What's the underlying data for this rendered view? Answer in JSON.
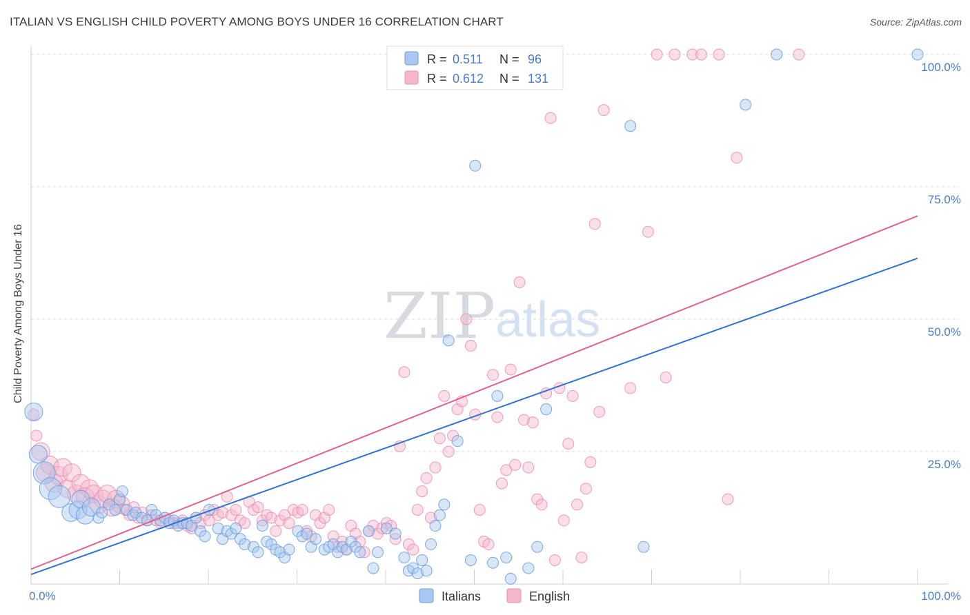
{
  "header": {
    "title": "ITALIAN VS ENGLISH CHILD POVERTY AMONG BOYS UNDER 16 CORRELATION CHART",
    "source": "Source: ZipAtlas.com"
  },
  "watermark": {
    "part1": "ZIP",
    "part2": "atlas"
  },
  "colors": {
    "italians_fill": "#a9c7f0",
    "italians_stroke": "#6a9ee0",
    "italians_line": "#2f72d2",
    "english_fill": "#f5b8cb",
    "english_stroke": "#ec8fae",
    "english_line": "#e0608c",
    "tick_text": "#4a7cc9",
    "grid": "#d9d9d9"
  },
  "legend_top": {
    "rows": [
      {
        "r_label": "R = ",
        "r_value": "0.511",
        "n_label": "N = ",
        "n_value": "96"
      },
      {
        "r_label": "R = ",
        "r_value": "0.612",
        "n_label": "N = ",
        "n_value": "131"
      }
    ]
  },
  "chart_data": {
    "type": "scatter",
    "title": "ITALIAN VS ENGLISH CHILD POVERTY AMONG BOYS UNDER 16 CORRELATION CHART",
    "xlabel": "",
    "ylabel": "Child Poverty Among Boys Under 16",
    "xlim": [
      0,
      100
    ],
    "ylim": [
      0,
      100
    ],
    "x_tick_labels": [
      "0.0%",
      "100.0%"
    ],
    "y_tick_labels": [
      "25.0%",
      "50.0%",
      "75.0%",
      "100.0%"
    ],
    "y_ticks": [
      25,
      50,
      75,
      100
    ],
    "grid": true,
    "legend_position": "bottom",
    "series": [
      {
        "name": "Italians",
        "r": 0.511,
        "n": 96,
        "trend": [
          [
            0,
            1.8
          ],
          [
            100,
            61.5
          ]
        ],
        "points": [
          [
            0.3,
            32.5,
            2
          ],
          [
            0.8,
            24.5,
            2
          ],
          [
            1.5,
            21,
            3
          ],
          [
            2.2,
            18,
            3
          ],
          [
            3.2,
            16.5,
            3
          ],
          [
            4.5,
            13.5,
            2
          ],
          [
            5.3,
            14,
            2
          ],
          [
            5.6,
            16,
            2
          ],
          [
            6.1,
            13,
            2
          ],
          [
            6.8,
            14.5,
            2
          ],
          [
            7.6,
            12.5,
            1
          ],
          [
            8,
            13.5,
            1
          ],
          [
            8.8,
            15,
            1
          ],
          [
            9.5,
            14,
            1
          ],
          [
            10,
            16,
            1
          ],
          [
            10.3,
            17.5,
            1
          ],
          [
            10.8,
            14,
            1
          ],
          [
            11.5,
            13,
            1
          ],
          [
            11.8,
            13.5,
            1
          ],
          [
            12.5,
            12.5,
            1
          ],
          [
            13.1,
            12,
            1
          ],
          [
            13.6,
            14,
            1
          ],
          [
            14.1,
            13,
            1
          ],
          [
            14.6,
            12,
            1
          ],
          [
            15.1,
            12.5,
            1
          ],
          [
            15.6,
            11.5,
            1
          ],
          [
            16.1,
            12,
            1
          ],
          [
            16.6,
            11,
            1
          ],
          [
            17.1,
            11.5,
            1
          ],
          [
            17.6,
            11.5,
            1
          ],
          [
            18.1,
            11,
            1
          ],
          [
            18.6,
            12.5,
            1
          ],
          [
            19.1,
            10,
            1
          ],
          [
            19.6,
            9,
            1
          ],
          [
            20.1,
            14,
            1
          ],
          [
            21.1,
            10.5,
            1
          ],
          [
            21.6,
            8.5,
            1
          ],
          [
            22.1,
            10,
            1
          ],
          [
            22.6,
            9.5,
            1
          ],
          [
            23.1,
            10.5,
            1
          ],
          [
            23.6,
            8.5,
            1
          ],
          [
            24.1,
            7.5,
            1
          ],
          [
            25.1,
            7,
            1
          ],
          [
            25.6,
            6,
            1
          ],
          [
            26.1,
            11,
            1
          ],
          [
            26.6,
            8,
            1
          ],
          [
            27.1,
            7.5,
            1
          ],
          [
            27.6,
            6.5,
            1
          ],
          [
            28.1,
            6,
            1
          ],
          [
            28.6,
            5,
            1
          ],
          [
            29.1,
            6.5,
            1
          ],
          [
            30.1,
            10,
            1
          ],
          [
            30.6,
            9,
            1
          ],
          [
            31.1,
            9.5,
            1
          ],
          [
            31.6,
            7,
            1
          ],
          [
            32.1,
            8.5,
            1
          ],
          [
            33.1,
            6.5,
            1
          ],
          [
            33.6,
            7,
            1
          ],
          [
            34.1,
            7.5,
            1
          ],
          [
            34.6,
            6,
            1
          ],
          [
            35.1,
            7,
            1
          ],
          [
            35.6,
            6.5,
            1
          ],
          [
            36.1,
            8,
            1
          ],
          [
            36.6,
            7,
            1
          ],
          [
            37.1,
            6,
            1
          ],
          [
            38.1,
            10,
            1
          ],
          [
            38.6,
            3,
            1
          ],
          [
            39.1,
            6,
            1
          ],
          [
            40.1,
            10.5,
            1
          ],
          [
            41.1,
            9.5,
            1
          ],
          [
            42.1,
            5,
            1
          ],
          [
            42.6,
            2.5,
            1
          ],
          [
            43.1,
            3,
            1
          ],
          [
            43.6,
            2,
            1
          ],
          [
            44.1,
            4.5,
            1
          ],
          [
            44.6,
            2.5,
            1
          ],
          [
            45.1,
            7.5,
            1
          ],
          [
            45.6,
            11,
            1
          ],
          [
            46.1,
            13,
            1
          ],
          [
            46.6,
            15,
            1
          ],
          [
            47.1,
            46,
            1
          ],
          [
            48.1,
            27,
            1
          ],
          [
            49.6,
            4.5,
            1
          ],
          [
            52.1,
            4,
            1
          ],
          [
            52.6,
            35.5,
            1
          ],
          [
            53.6,
            5,
            1
          ],
          [
            54.1,
            1,
            1
          ],
          [
            56.1,
            3,
            1
          ],
          [
            57.1,
            7,
            1
          ],
          [
            58.1,
            33,
            1
          ],
          [
            50.1,
            79,
            1
          ],
          [
            67.6,
            86.5,
            1
          ],
          [
            69.1,
            7,
            1
          ],
          [
            80.6,
            90.5,
            1
          ],
          [
            84.1,
            100,
            1
          ],
          [
            100,
            100,
            1
          ]
        ]
      },
      {
        "name": "English",
        "r": 0.612,
        "n": 131,
        "trend": [
          [
            0,
            2.8
          ],
          [
            100,
            69.5
          ]
        ],
        "points": [
          [
            0.3,
            32,
            1
          ],
          [
            0.6,
            28,
            1
          ],
          [
            1.1,
            25,
            2
          ],
          [
            1.6,
            21,
            2
          ],
          [
            2.1,
            22.5,
            2
          ],
          [
            2.6,
            19,
            2
          ],
          [
            3.1,
            20.5,
            2
          ],
          [
            3.6,
            22,
            2
          ],
          [
            4.1,
            18,
            2
          ],
          [
            4.6,
            21,
            2
          ],
          [
            5.1,
            17,
            2
          ],
          [
            5.6,
            19,
            2
          ],
          [
            6.1,
            16.5,
            2
          ],
          [
            6.6,
            18,
            2
          ],
          [
            7.1,
            17,
            2
          ],
          [
            7.6,
            15,
            2
          ],
          [
            8.1,
            16,
            2
          ],
          [
            8.6,
            17,
            2
          ],
          [
            9.1,
            14.5,
            2
          ],
          [
            9.6,
            16,
            2
          ],
          [
            10.1,
            15,
            2
          ],
          [
            10.6,
            14,
            1
          ],
          [
            11.1,
            13,
            1
          ],
          [
            11.6,
            14.5,
            1
          ],
          [
            12.1,
            12.5,
            1
          ],
          [
            12.6,
            13.5,
            1
          ],
          [
            13.1,
            12,
            1
          ],
          [
            13.6,
            13,
            1
          ],
          [
            14.1,
            12,
            1
          ],
          [
            14.6,
            11.5,
            1
          ],
          [
            15.1,
            12.5,
            1
          ],
          [
            15.6,
            12,
            1
          ],
          [
            16.1,
            11.5,
            1
          ],
          [
            16.6,
            11.5,
            1
          ],
          [
            17.1,
            12,
            1
          ],
          [
            17.6,
            11,
            1
          ],
          [
            18.1,
            10.5,
            1
          ],
          [
            18.6,
            12.5,
            1
          ],
          [
            19.1,
            11.5,
            1
          ],
          [
            19.6,
            13,
            1
          ],
          [
            20.1,
            12,
            1
          ],
          [
            20.6,
            14,
            1
          ],
          [
            21.1,
            13,
            1
          ],
          [
            21.6,
            13.5,
            1
          ],
          [
            22.1,
            16.5,
            1
          ],
          [
            22.6,
            13,
            1
          ],
          [
            23.1,
            14,
            1
          ],
          [
            23.6,
            12,
            1
          ],
          [
            24.1,
            11.5,
            1
          ],
          [
            24.6,
            15.5,
            1
          ],
          [
            25.1,
            14,
            1
          ],
          [
            25.6,
            14.5,
            1
          ],
          [
            26.1,
            12,
            1
          ],
          [
            26.6,
            13,
            1
          ],
          [
            27.1,
            12.5,
            1
          ],
          [
            27.6,
            10,
            1
          ],
          [
            28.1,
            12,
            1
          ],
          [
            28.6,
            13,
            1
          ],
          [
            29.1,
            11.5,
            1
          ],
          [
            29.6,
            14,
            1
          ],
          [
            30.1,
            13.5,
            1
          ],
          [
            30.6,
            14,
            1
          ],
          [
            31.1,
            10,
            1
          ],
          [
            31.6,
            9,
            1
          ],
          [
            32.1,
            13,
            1
          ],
          [
            32.6,
            11.5,
            1
          ],
          [
            33.1,
            12.5,
            1
          ],
          [
            33.6,
            14,
            1
          ],
          [
            34.1,
            9,
            1
          ],
          [
            34.6,
            7,
            1
          ],
          [
            35.1,
            8,
            1
          ],
          [
            35.6,
            6.5,
            1
          ],
          [
            36.1,
            11,
            1
          ],
          [
            36.6,
            9.5,
            1
          ],
          [
            37.1,
            8,
            1
          ],
          [
            37.6,
            6,
            1
          ],
          [
            38.1,
            10,
            1
          ],
          [
            38.6,
            11,
            1
          ],
          [
            39.1,
            9.5,
            1
          ],
          [
            39.6,
            10.5,
            1
          ],
          [
            40.1,
            11.5,
            1
          ],
          [
            40.6,
            11,
            1
          ],
          [
            41.1,
            8.5,
            1
          ],
          [
            41.6,
            26,
            1
          ],
          [
            42.1,
            40,
            1
          ],
          [
            42.6,
            7.5,
            1
          ],
          [
            43.1,
            6.5,
            1
          ],
          [
            43.6,
            14,
            1
          ],
          [
            44.1,
            17.5,
            1
          ],
          [
            44.6,
            20,
            1
          ],
          [
            45.1,
            12.5,
            1
          ],
          [
            45.6,
            22,
            1
          ],
          [
            46.1,
            27.5,
            1
          ],
          [
            46.6,
            35.5,
            1
          ],
          [
            47.1,
            25,
            1
          ],
          [
            47.6,
            28,
            1
          ],
          [
            48.1,
            33,
            1
          ],
          [
            48.6,
            34.5,
            1
          ],
          [
            49.1,
            50,
            1
          ],
          [
            49.6,
            45,
            1
          ],
          [
            50.1,
            32,
            1
          ],
          [
            50.6,
            14,
            1
          ],
          [
            51.1,
            8,
            1
          ],
          [
            51.6,
            7.5,
            1
          ],
          [
            52.1,
            39.5,
            1
          ],
          [
            52.6,
            31.5,
            1
          ],
          [
            53.1,
            19,
            1
          ],
          [
            53.6,
            21.5,
            1
          ],
          [
            54.1,
            40.5,
            1
          ],
          [
            54.6,
            22.5,
            1
          ],
          [
            55.1,
            57,
            1
          ],
          [
            55.6,
            31,
            1
          ],
          [
            56.1,
            22,
            1
          ],
          [
            56.6,
            30.5,
            1
          ],
          [
            57.1,
            16,
            1
          ],
          [
            57.6,
            15,
            1
          ],
          [
            58.1,
            36,
            1
          ],
          [
            58.6,
            88,
            1
          ],
          [
            59.1,
            4.5,
            1
          ],
          [
            59.6,
            37,
            1
          ],
          [
            60.1,
            12,
            1
          ],
          [
            60.6,
            26.5,
            1
          ],
          [
            61.1,
            35.5,
            1
          ],
          [
            61.6,
            15,
            1
          ],
          [
            62.1,
            5,
            1
          ],
          [
            62.6,
            18,
            1
          ],
          [
            63.1,
            23,
            1
          ],
          [
            63.6,
            68,
            1
          ],
          [
            64.1,
            32.5,
            1
          ],
          [
            64.6,
            89.5,
            1
          ],
          [
            67.6,
            37,
            1
          ],
          [
            69.6,
            66.5,
            1
          ],
          [
            70.6,
            100,
            1
          ],
          [
            71.6,
            39,
            1
          ],
          [
            72.6,
            100,
            1
          ],
          [
            74.6,
            100,
            1
          ],
          [
            75.6,
            100,
            1
          ],
          [
            77.6,
            100,
            1
          ],
          [
            78.6,
            16,
            1
          ],
          [
            79.6,
            80.5,
            1
          ],
          [
            86.6,
            100,
            1
          ]
        ]
      }
    ]
  },
  "legend_bottom": {
    "items": [
      {
        "label": "Italians"
      },
      {
        "label": "English"
      }
    ]
  }
}
